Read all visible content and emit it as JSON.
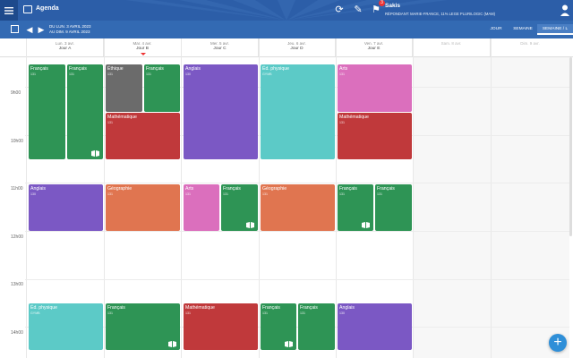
{
  "app": {
    "title": "Agenda"
  },
  "user": {
    "name": "Sakis",
    "subtitle": "RÉPONDANT: MARIE-FRANCE, 11% LEGE PLURILOGIC (MAM)",
    "notifications": "3"
  },
  "toolbar": {
    "date_range_line1": "DU LUN. 3 AVRIL 2023",
    "date_range_line2": "AU DIM. 9 AVRIL 2023",
    "views": [
      "JOUR",
      "SEMAINE",
      "SEMAINE / L"
    ]
  },
  "days": [
    {
      "date": "Lun. 3 avr.",
      "jour": "Jour A"
    },
    {
      "date": "Mar. 4 avr.",
      "jour": "Jour B"
    },
    {
      "date": "Mer. 5 avr.",
      "jour": "Jour C"
    },
    {
      "date": "Jeu. 6 avr.",
      "jour": "Jour D"
    },
    {
      "date": "Ven. 7 avr.",
      "jour": "Jour E"
    },
    {
      "date": "Sam. 8 avr.",
      "jour": ""
    },
    {
      "date": "Dim. 9 avr.",
      "jour": ""
    }
  ],
  "times": [
    "9h00",
    "10h00",
    "11h00",
    "12h00",
    "13h00",
    "14h00"
  ],
  "events": [
    {
      "title": "Français",
      "room": "131"
    },
    {
      "title": "Français",
      "room": "131"
    },
    {
      "title": "Éthique",
      "room": "131"
    },
    {
      "title": "Français",
      "room": "131"
    },
    {
      "title": "Mathématique",
      "room": "131"
    },
    {
      "title": "Anglais",
      "room": "130"
    },
    {
      "title": "Éd. physique",
      "room": "GYMB"
    },
    {
      "title": "Arts",
      "room": "131"
    },
    {
      "title": "Mathématique",
      "room": "131"
    },
    {
      "title": "Anglais",
      "room": "130"
    },
    {
      "title": "Géographie",
      "room": "131"
    },
    {
      "title": "Arts",
      "room": "131"
    },
    {
      "title": "Français",
      "room": "131"
    },
    {
      "title": "Géographie",
      "room": "131"
    },
    {
      "title": "Français",
      "room": "131"
    },
    {
      "title": "Français",
      "room": "131"
    },
    {
      "title": "Éd. physique",
      "room": "GYMB"
    },
    {
      "title": "Français",
      "room": "131"
    },
    {
      "title": "Mathématique",
      "room": "131"
    },
    {
      "title": "Français",
      "room": "131"
    },
    {
      "title": "Français",
      "room": "131"
    },
    {
      "title": "Anglais",
      "room": "130"
    }
  ],
  "colors": {
    "francais": "#2e9455",
    "ethique": "#6b6b6b",
    "math": "#c0393b",
    "anglais": "#7b58c4",
    "edphys": "#5ccac7",
    "arts": "#db6fbd",
    "geo": "#e07550",
    "header": "#2c5ea8"
  }
}
